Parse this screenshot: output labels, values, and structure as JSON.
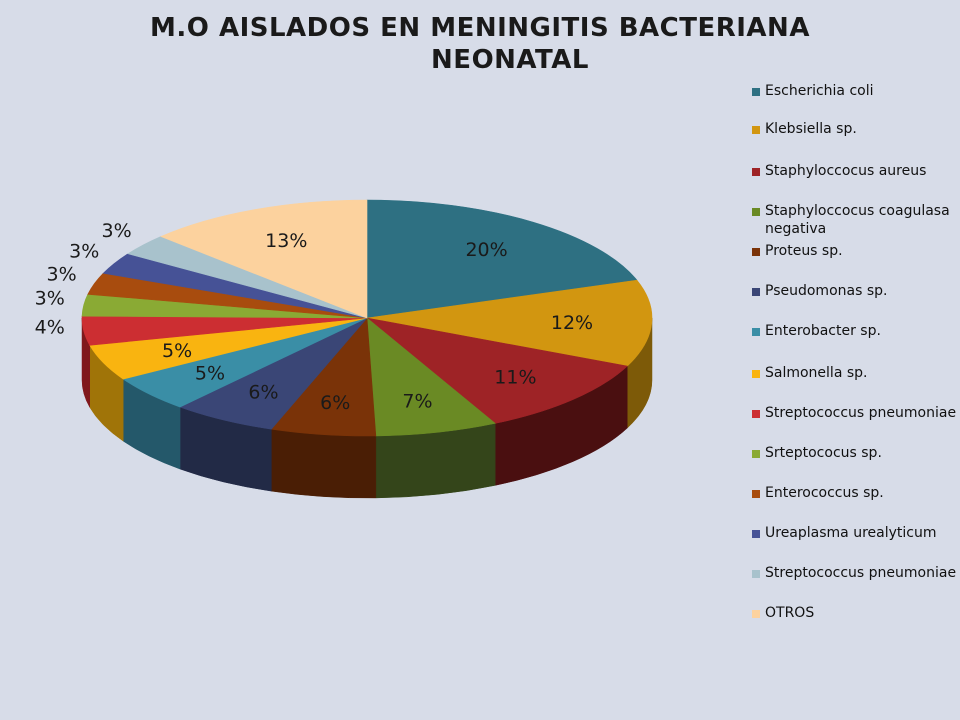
{
  "title": {
    "line1": "M.O AISLADOS EN MENINGITIS BACTERIANA",
    "line2": "NEONATAL"
  },
  "chart_data": {
    "type": "pie",
    "style": "3d-exploded-none",
    "title": "M.O AISLADOS EN MENINGITIS BACTERIANA NEONATAL",
    "legend_position": "right",
    "labels": [
      "Escherichia coli",
      "Klebsiella sp.",
      "Staphyloccocus aureus",
      "Staphyloccocus coagulasa negativa",
      "Proteus sp.",
      "Pseudomonas sp.",
      "Enterobacter sp.",
      "Salmonella sp.",
      "Streptococcus pneumoniae",
      "Srteptococus sp.",
      "Enterococcus sp.",
      "Ureaplasma urealyticum",
      "Streptococcus pneumoniae",
      "OTROS"
    ],
    "values": [
      20,
      12,
      11,
      7,
      6,
      6,
      5,
      5,
      4,
      3,
      3,
      3,
      3,
      13
    ],
    "value_labels": [
      "20%",
      "12%",
      "11%",
      "7%",
      "6%",
      "6%",
      "5%",
      "5%",
      "4%",
      "3%",
      "3%",
      "3%",
      "3%",
      "13%"
    ],
    "draw_order": [
      0,
      1,
      2,
      3,
      4,
      5,
      6,
      7,
      8,
      9,
      10,
      11,
      12,
      13
    ],
    "colors": [
      "#2e7082",
      "#d29610",
      "#9e2326",
      "#6a8a24",
      "#7a3308",
      "#3a4676",
      "#3a8ea6",
      "#f9b410",
      "#cc2e32",
      "#8aaa34",
      "#a84c0e",
      "#465296",
      "#a8c2cc",
      "#fcd29e"
    ],
    "side_colors": [
      "#1d4854",
      "#7d5a08",
      "#4a0f10",
      "#34451a",
      "#4a1e05",
      "#222a46",
      "#24586a",
      "#a07408",
      "#80181c",
      "#52661e",
      "#6a2e08",
      "#2a3260",
      "#6a8088",
      "#b09070"
    ]
  }
}
